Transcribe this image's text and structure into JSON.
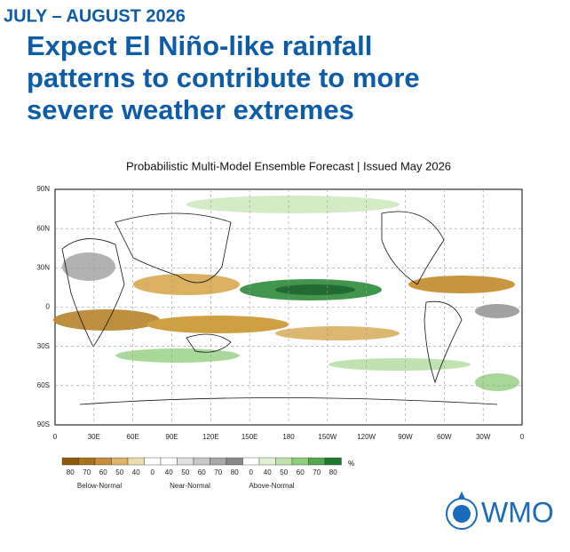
{
  "header": {
    "period": "JULY – AUGUST 2026",
    "headline": [
      "Expect El Niño-like rainfall",
      "patterns to contribute to more",
      "severe weather extremes"
    ]
  },
  "map": {
    "title": "Probabilistic Multi-Model Ensemble Forecast | Issued May 2026",
    "lat_labels": [
      "90N",
      "60N",
      "30N",
      "0",
      "30S",
      "60S",
      "90S"
    ],
    "lon_labels": [
      "0",
      "30E",
      "60E",
      "90E",
      "120E",
      "150E",
      "180",
      "150W",
      "120W",
      "90W",
      "60W",
      "30W",
      "0"
    ]
  },
  "legend": {
    "labels": [
      "80",
      "70",
      "60",
      "50",
      "40",
      "0",
      "40",
      "50",
      "60",
      "70",
      "80",
      "0",
      "40",
      "50",
      "60",
      "70",
      "80"
    ],
    "unit": "%",
    "categories": [
      "Below-Normal",
      "Near-Normal",
      "Above-Normal"
    ]
  },
  "logo": {
    "text": "WMO"
  }
}
